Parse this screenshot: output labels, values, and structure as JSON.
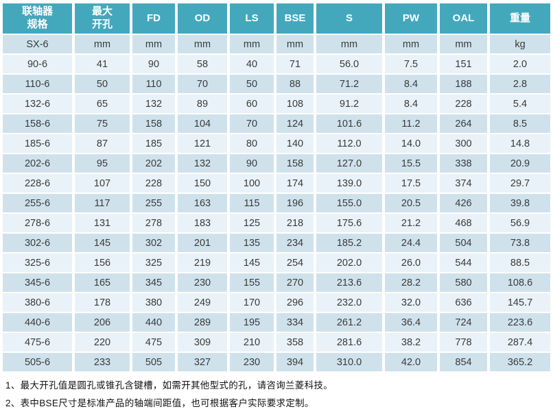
{
  "table": {
    "columns": [
      {
        "id": "spec",
        "label": "联轴器\n规格"
      },
      {
        "id": "max-bore",
        "label": "最大\n开孔"
      },
      {
        "id": "fd",
        "label": "FD"
      },
      {
        "id": "od",
        "label": "OD"
      },
      {
        "id": "ls",
        "label": "LS"
      },
      {
        "id": "bse",
        "label": "BSE"
      },
      {
        "id": "s",
        "label": "S"
      },
      {
        "id": "pw",
        "label": "PW"
      },
      {
        "id": "oal",
        "label": "OAL"
      },
      {
        "id": "weight",
        "label": "重量"
      }
    ],
    "units_row": [
      "SX-6",
      "mm",
      "mm",
      "mm",
      "mm",
      "mm",
      "mm",
      "mm",
      "mm",
      "kg"
    ],
    "rows": [
      [
        "90-6",
        "41",
        "90",
        "58",
        "40",
        "71",
        "56.0",
        "7.5",
        "151",
        "2.0"
      ],
      [
        "110-6",
        "50",
        "110",
        "70",
        "50",
        "88",
        "71.2",
        "8.4",
        "188",
        "2.8"
      ],
      [
        "132-6",
        "65",
        "132",
        "89",
        "60",
        "108",
        "91.2",
        "8.4",
        "228",
        "5.4"
      ],
      [
        "158-6",
        "75",
        "158",
        "104",
        "70",
        "124",
        "101.6",
        "11.2",
        "264",
        "8.5"
      ],
      [
        "185-6",
        "87",
        "185",
        "121",
        "80",
        "140",
        "112.0",
        "14.0",
        "300",
        "14.8"
      ],
      [
        "202-6",
        "95",
        "202",
        "132",
        "90",
        "158",
        "127.0",
        "15.5",
        "338",
        "20.9"
      ],
      [
        "228-6",
        "107",
        "228",
        "150",
        "100",
        "174",
        "139.0",
        "17.5",
        "374",
        "29.7"
      ],
      [
        "255-6",
        "117",
        "255",
        "163",
        "115",
        "196",
        "155.0",
        "20.5",
        "426",
        "39.8"
      ],
      [
        "278-6",
        "131",
        "278",
        "183",
        "125",
        "218",
        "175.6",
        "21.2",
        "468",
        "56.9"
      ],
      [
        "302-6",
        "145",
        "302",
        "201",
        "135",
        "234",
        "185.2",
        "24.4",
        "504",
        "73.8"
      ],
      [
        "325-6",
        "156",
        "325",
        "219",
        "145",
        "254",
        "202.0",
        "26.0",
        "544",
        "88.5"
      ],
      [
        "345-6",
        "165",
        "345",
        "230",
        "155",
        "270",
        "213.6",
        "28.2",
        "580",
        "108.6"
      ],
      [
        "380-6",
        "178",
        "380",
        "249",
        "170",
        "296",
        "232.0",
        "32.0",
        "636",
        "145.7"
      ],
      [
        "440-6",
        "206",
        "440",
        "289",
        "195",
        "334",
        "261.2",
        "36.4",
        "724",
        "223.6"
      ],
      [
        "475-6",
        "220",
        "475",
        "309",
        "210",
        "358",
        "281.6",
        "38.2",
        "778",
        "287.4"
      ],
      [
        "505-6",
        "233",
        "505",
        "327",
        "230",
        "394",
        "310.0",
        "42.0",
        "854",
        "365.2"
      ]
    ]
  },
  "notes": [
    "1、最大开孔值是圆孔或锥孔含键槽，如需开其他型式的孔，请咨询兰菱科技。",
    "2、表中BSE尺寸是标准产品的轴端间距值，也可根据客户实际要求定制。"
  ],
  "colors": {
    "header_bg": "#44a8bd",
    "header_text": "#ffffff",
    "row_odd": "#cfe2ec",
    "row_even": "#e9f2f8",
    "cell_text": "#3a3a3a"
  }
}
